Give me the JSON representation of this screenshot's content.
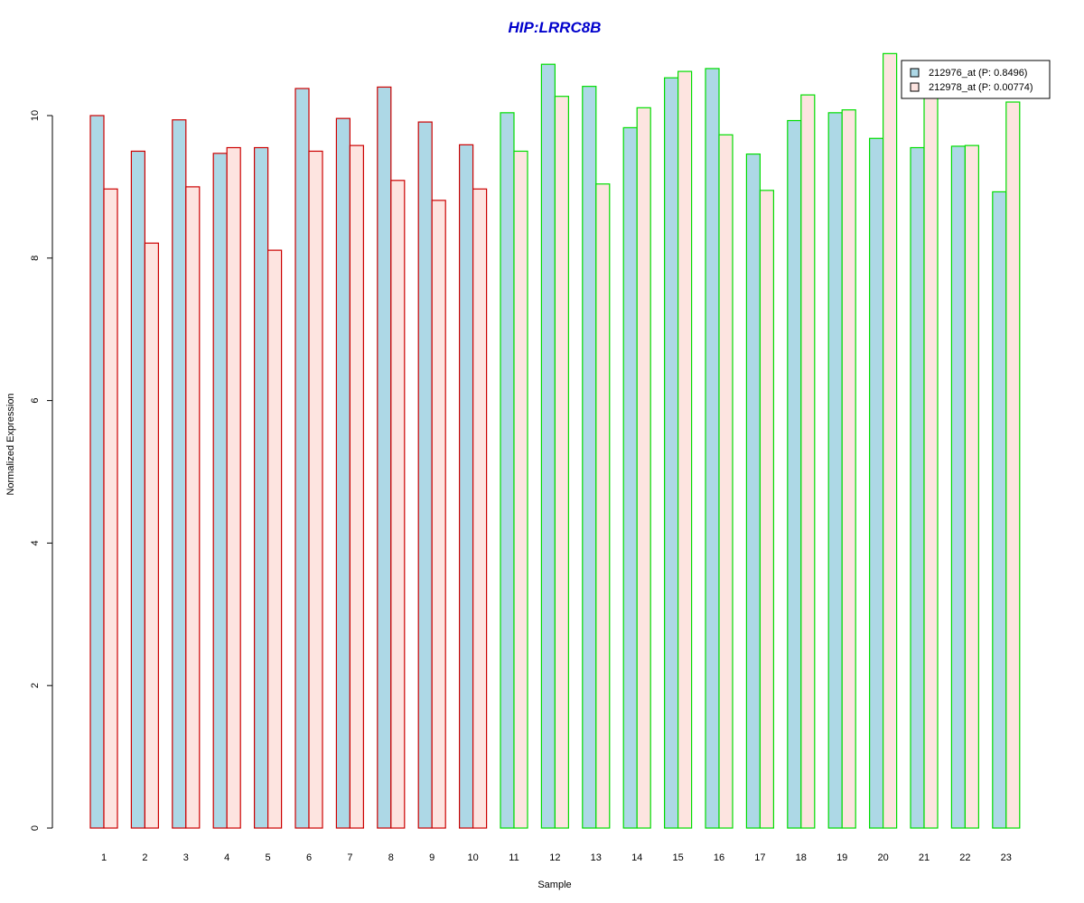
{
  "chart_data": {
    "type": "bar",
    "title": "HIP:LRRC8B",
    "xlabel": "Sample",
    "ylabel": "Normalized Expression",
    "ylim": [
      0,
      11
    ],
    "yticks": [
      0,
      2,
      4,
      6,
      8,
      10
    ],
    "grid": false,
    "legend_position": "top-right",
    "categories": [
      "1",
      "2",
      "3",
      "4",
      "5",
      "6",
      "7",
      "8",
      "9",
      "10",
      "11",
      "12",
      "13",
      "14",
      "15",
      "16",
      "17",
      "18",
      "19",
      "20",
      "21",
      "22",
      "23"
    ],
    "group_border_colors": [
      "#cc0000",
      "#cc0000",
      "#cc0000",
      "#cc0000",
      "#cc0000",
      "#cc0000",
      "#cc0000",
      "#cc0000",
      "#cc0000",
      "#cc0000",
      "#00dd00",
      "#00dd00",
      "#00dd00",
      "#00dd00",
      "#00dd00",
      "#00dd00",
      "#00dd00",
      "#00dd00",
      "#00dd00",
      "#00dd00",
      "#00dd00",
      "#00dd00",
      "#00dd00"
    ],
    "series": [
      {
        "name": "212976_at (P: 0.8496)",
        "color": "#add8e6",
        "values": [
          10.0,
          9.5,
          9.94,
          9.47,
          9.55,
          10.38,
          9.96,
          10.4,
          9.91,
          9.59,
          10.04,
          10.72,
          10.41,
          9.83,
          10.53,
          10.66,
          9.46,
          9.93,
          10.04,
          9.68,
          9.55,
          9.57,
          8.93
        ]
      },
      {
        "name": "212978_at (P: 0.00774)",
        "color": "#fde4e0",
        "values": [
          8.97,
          8.21,
          9.0,
          9.55,
          8.11,
          9.5,
          9.58,
          9.09,
          8.81,
          8.97,
          9.5,
          10.27,
          9.04,
          10.11,
          10.62,
          9.73,
          8.95,
          10.29,
          10.08,
          10.87,
          10.27,
          9.58,
          10.19
        ]
      }
    ]
  }
}
